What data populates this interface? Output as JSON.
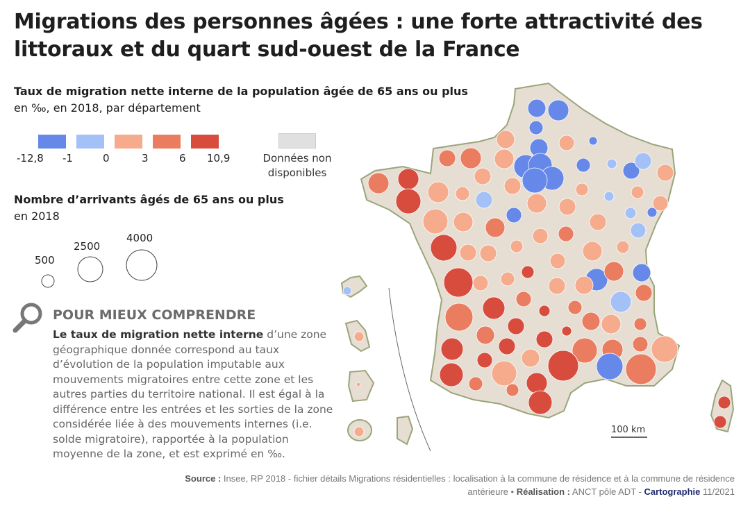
{
  "title": "Migrations des personnes âgées : une forte attractivité des littoraux et du quart sud-ouest de la France",
  "legend_rate": {
    "title_bold": "Taux de migration nette interne de la population âgée de 65 ans ou plus",
    "title_rest": "en ‰, en 2018, par département",
    "classes": [
      {
        "range": "-12,8 à -1",
        "color": "#6688e8"
      },
      {
        "range": "-1 à 0",
        "color": "#a3c1f7"
      },
      {
        "range": "0 à 3",
        "color": "#f5ab8c"
      },
      {
        "range": "3 à 6",
        "color": "#ea7c60"
      },
      {
        "range": "6 à 10,9",
        "color": "#d84c3e"
      }
    ],
    "ticks": [
      "-12,8",
      "-1",
      "0",
      "3",
      "6",
      "10,9"
    ],
    "no_data_label": "Données non disponibles",
    "no_data_color": "#e0e0e0"
  },
  "legend_size": {
    "title_bold": "Nombre d’arrivants âgés de 65 ans ou plus",
    "title_rest": "en 2018",
    "values": [
      "500",
      "2500",
      "4000"
    ]
  },
  "explain": {
    "icon": "magnifier-icon",
    "heading": "POUR MIEUX COMPRENDRE",
    "term": "Le taux de migration nette interne",
    "text": " d’une zone géographique donnée correspond au taux d’évolution de la population imputable aux mouvements migratoires entre cette zone et les autres parties du territoire national. Il est égal à la différence entre les entrées et les sorties de la zone considérée liée à des mouvements internes (i.e. solde migratoire), rapportée à la population moyenne de la zone, et est exprimé en ‰."
  },
  "map": {
    "scale_label": "100 km",
    "land_color": "#e6ddd3",
    "border_color": "#9aa57a"
  },
  "source": {
    "source_label": "Source :",
    "source_text": " Insee, RP 2018 - fichier détails Migrations résidentielles : localisation à la commune de résidence et à la commune de résidence antérieure • ",
    "realisation_label": "Réalisation :",
    "realisation_text": " ANCT pôle ADT - ",
    "carto_label": "Cartographie",
    "date": " 11/2021"
  }
}
